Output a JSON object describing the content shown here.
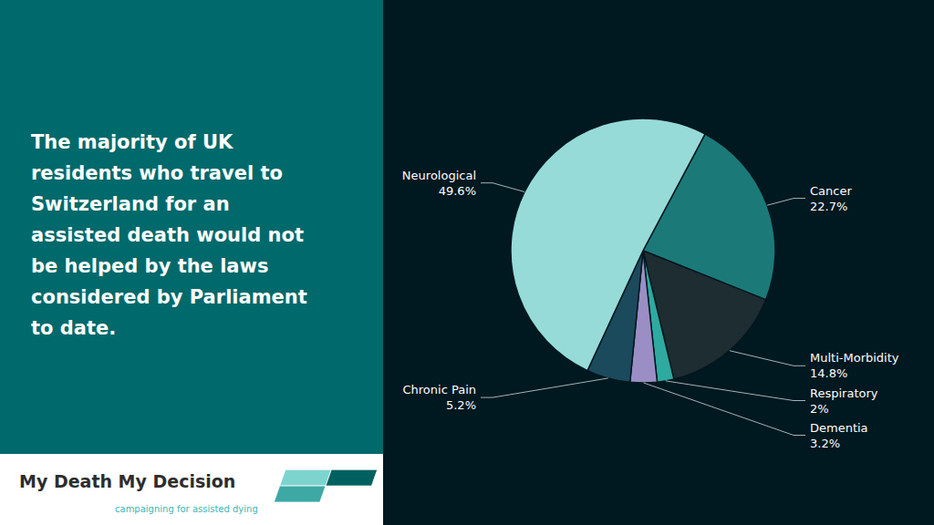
{
  "chart_data": {
    "type": "pie",
    "categories": [
      "Cancer",
      "Multi-Morbidity",
      "Respiratory",
      "Dementia",
      "Chronic Pain",
      "Neurological"
    ],
    "values": [
      22.7,
      14.8,
      2,
      3.2,
      5.2,
      49.6
    ],
    "value_labels": [
      "22.7%",
      "14.8%",
      "2%",
      "3.2%",
      "5.2%",
      "49.6%"
    ],
    "colors": [
      "#1b7a78",
      "#1e2d32",
      "#2eaaa0",
      "#9b8ec4",
      "#1b4a5c",
      "#96dbd8"
    ],
    "data_labels": true,
    "annotations": [
      "The majority of UK\nresidents who travel to\nSwitzerland for an\nassisted death would not\nbe helped by the laws\nconsidered by Parliament\nto date.",
      "My Death My Decision",
      "campaigning for assisted dying"
    ]
  }
}
